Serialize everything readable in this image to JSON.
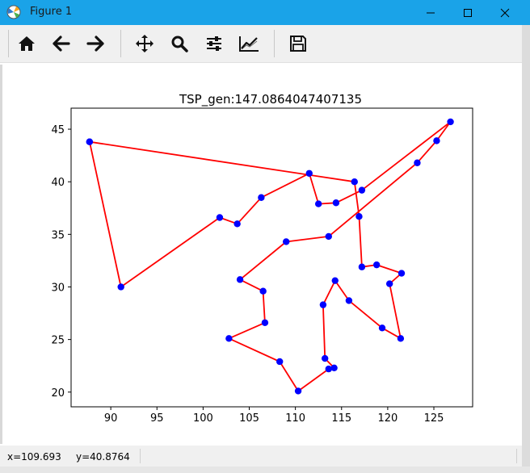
{
  "window": {
    "title": "Figure 1",
    "controls": [
      "minimize",
      "maximize",
      "close"
    ]
  },
  "toolbar": {
    "buttons": [
      {
        "name": "home",
        "icon": "home-icon"
      },
      {
        "name": "back",
        "icon": "arrow-left-icon"
      },
      {
        "name": "forward",
        "icon": "arrow-right-icon"
      },
      {
        "name": "pan",
        "icon": "move-icon"
      },
      {
        "name": "zoom",
        "icon": "zoom-icon"
      },
      {
        "name": "configure-subplots",
        "icon": "sliders-icon"
      },
      {
        "name": "edit-axis",
        "icon": "line-chart-icon"
      },
      {
        "name": "save",
        "icon": "save-icon"
      }
    ]
  },
  "status": {
    "x_readout": "x=109.693",
    "y_readout": "y=40.8764"
  },
  "chart_data": {
    "type": "line",
    "title": "TSP_gen:147.0864047407135",
    "xlabel": "",
    "ylabel": "",
    "xlim": [
      85.7,
      129.2
    ],
    "ylim": [
      18.6,
      47.0
    ],
    "xticks": [
      90,
      95,
      100,
      105,
      110,
      115,
      120,
      125
    ],
    "yticks": [
      20,
      25,
      30,
      35,
      40,
      45
    ],
    "xtick_labels": [
      "90",
      "95",
      "100",
      "105",
      "110",
      "115",
      "120",
      "125"
    ],
    "ytick_labels": [
      "20",
      "25",
      "30",
      "35",
      "40",
      "45"
    ],
    "line_color": "#ff0000",
    "marker_color": "#0000ff",
    "grid": false,
    "x": [
      87.7,
      91.1,
      101.8,
      103.7,
      106.3,
      111.5,
      112.5,
      114.4,
      117.2,
      126.8,
      125.3,
      123.2,
      113.6,
      109.0,
      104.0,
      106.5,
      106.7,
      102.8,
      108.3,
      110.3,
      113.6,
      114.2,
      113.2,
      113.0,
      114.3,
      115.8,
      119.4,
      121.4,
      120.2,
      121.5,
      118.8,
      117.2,
      116.9,
      116.4,
      87.7
    ],
    "y": [
      43.8,
      30.0,
      36.6,
      36.0,
      38.5,
      40.8,
      37.9,
      38.0,
      39.2,
      45.7,
      43.9,
      41.8,
      34.8,
      34.3,
      30.7,
      29.6,
      26.6,
      25.1,
      22.9,
      20.1,
      22.2,
      22.3,
      23.2,
      28.3,
      30.6,
      28.7,
      26.1,
      25.1,
      30.3,
      31.3,
      32.1,
      31.9,
      36.7,
      40.0,
      43.8
    ]
  }
}
